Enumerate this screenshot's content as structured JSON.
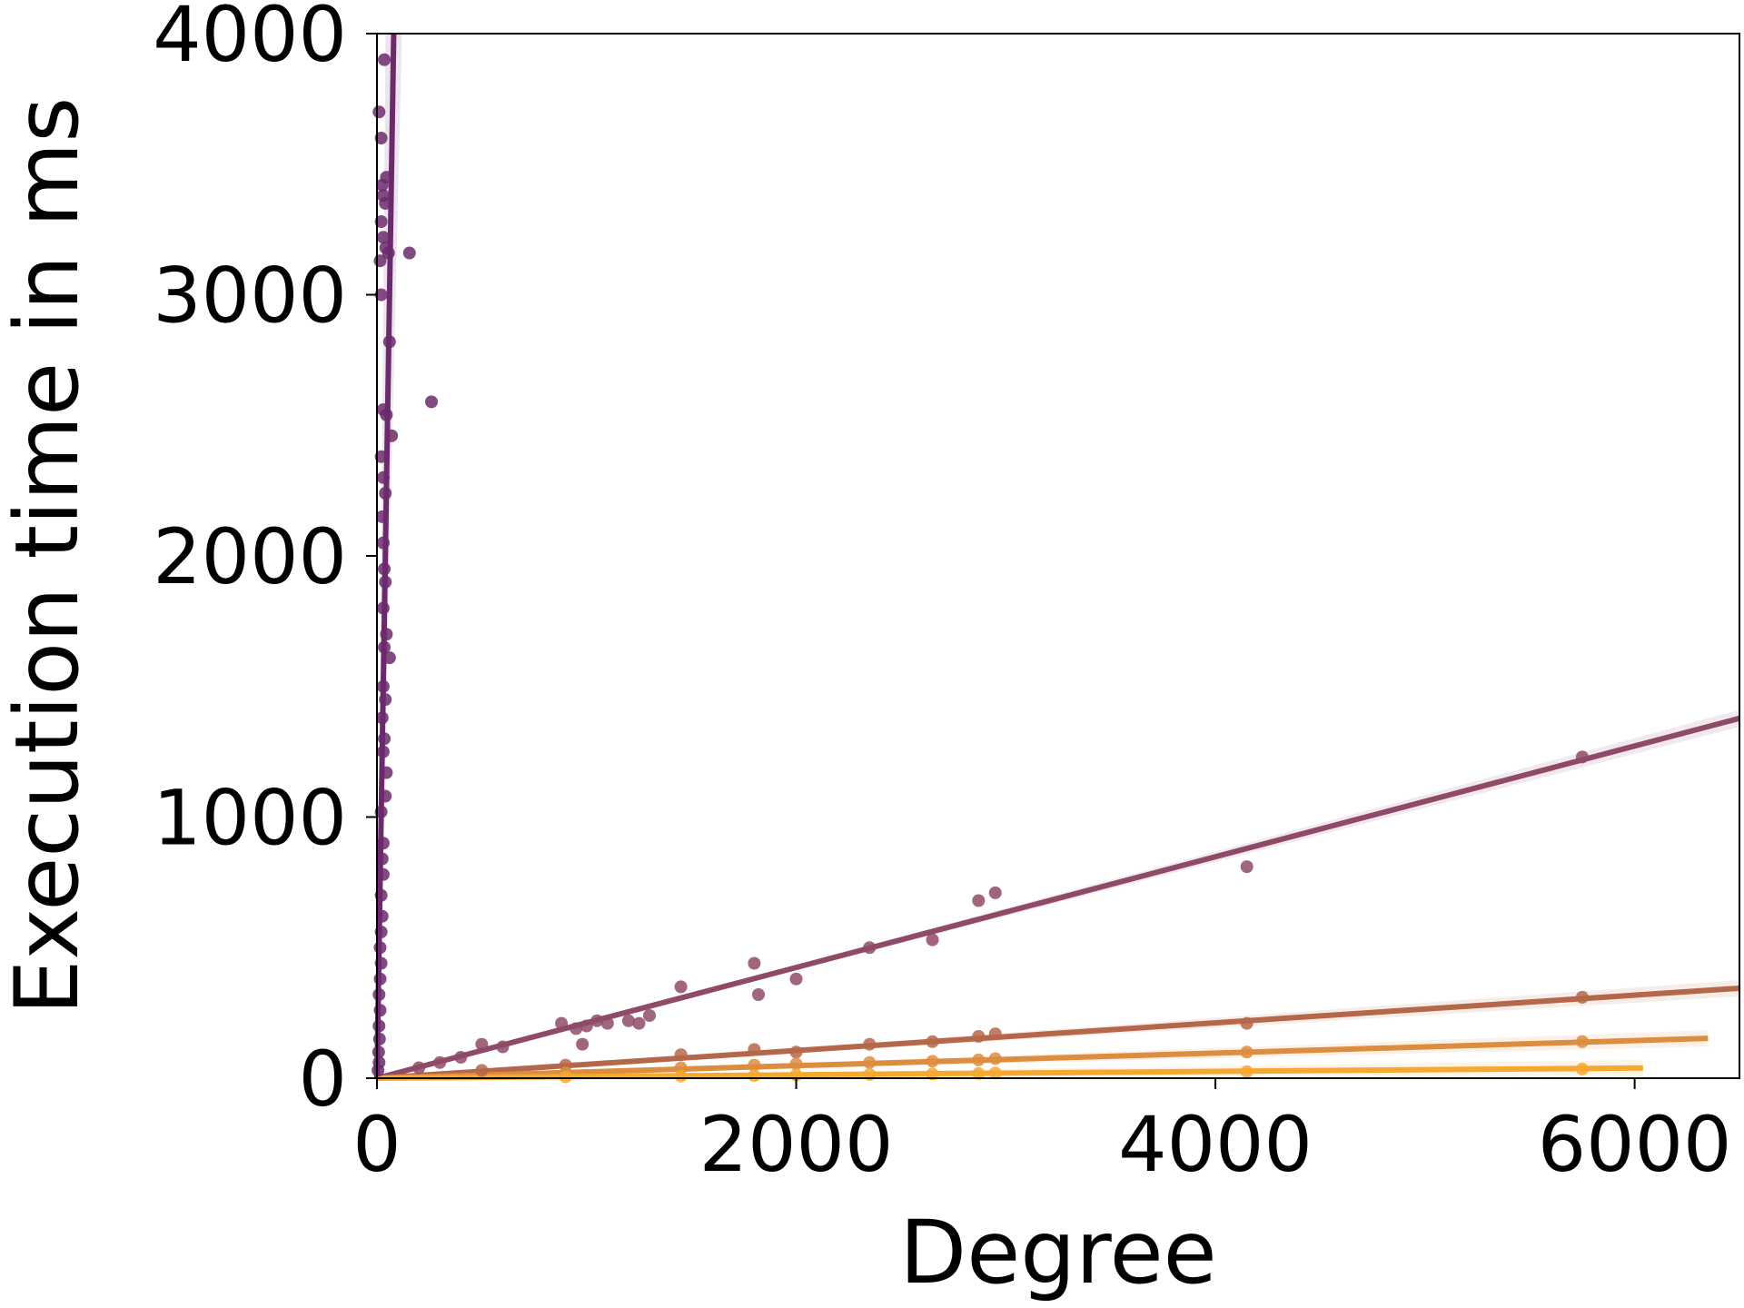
{
  "chart_data": {
    "type": "scatter",
    "xlabel": "Degree",
    "ylabel": "Execution time in ms",
    "xlim": [
      0,
      6500
    ],
    "ylim": [
      0,
      4000
    ],
    "x_ticks": [
      0,
      2000,
      4000,
      6000
    ],
    "y_ticks": [
      0,
      1000,
      2000,
      3000,
      4000
    ],
    "grid": false,
    "legend": "none",
    "series": [
      {
        "color": "#6b2a6b",
        "fit": {
          "slope": 50.0,
          "intercept": 0,
          "x_end": 85
        },
        "points": [
          [
            10,
            3700
          ],
          [
            20,
            3600
          ],
          [
            35,
            3900
          ],
          [
            25,
            3420
          ],
          [
            45,
            3450
          ],
          [
            30,
            3380
          ],
          [
            40,
            3350
          ],
          [
            20,
            3280
          ],
          [
            30,
            3220
          ],
          [
            42,
            3180
          ],
          [
            15,
            3130
          ],
          [
            55,
            3160
          ],
          [
            155,
            3160
          ],
          [
            20,
            3000
          ],
          [
            60,
            2820
          ],
          [
            260,
            2590
          ],
          [
            30,
            2560
          ],
          [
            45,
            2540
          ],
          [
            70,
            2460
          ],
          [
            20,
            2380
          ],
          [
            30,
            2300
          ],
          [
            40,
            2240
          ],
          [
            25,
            2150
          ],
          [
            30,
            2050
          ],
          [
            35,
            1950
          ],
          [
            40,
            1900
          ],
          [
            30,
            1800
          ],
          [
            45,
            1700
          ],
          [
            35,
            1650
          ],
          [
            60,
            1610
          ],
          [
            30,
            1500
          ],
          [
            40,
            1450
          ],
          [
            25,
            1380
          ],
          [
            35,
            1300
          ],
          [
            30,
            1250
          ],
          [
            45,
            1170
          ],
          [
            40,
            1080
          ],
          [
            20,
            1020
          ],
          [
            30,
            900
          ],
          [
            25,
            840
          ],
          [
            30,
            780
          ],
          [
            20,
            700
          ],
          [
            25,
            620
          ],
          [
            20,
            560
          ],
          [
            15,
            500
          ],
          [
            20,
            440
          ],
          [
            15,
            380
          ],
          [
            10,
            320
          ],
          [
            15,
            260
          ],
          [
            10,
            200
          ],
          [
            12,
            150
          ],
          [
            8,
            100
          ],
          [
            10,
            60
          ],
          [
            5,
            30
          ]
        ]
      },
      {
        "color": "#8f4a68",
        "fit": {
          "slope": 0.212,
          "intercept": 0,
          "x_end": 6500
        },
        "points": [
          [
            200,
            40
          ],
          [
            300,
            60
          ],
          [
            400,
            80
          ],
          [
            500,
            130
          ],
          [
            600,
            120
          ],
          [
            880,
            210
          ],
          [
            950,
            190
          ],
          [
            980,
            130
          ],
          [
            1000,
            200
          ],
          [
            1050,
            220
          ],
          [
            1100,
            210
          ],
          [
            1200,
            220
          ],
          [
            1250,
            210
          ],
          [
            1300,
            240
          ],
          [
            1450,
            350
          ],
          [
            1800,
            440
          ],
          [
            1820,
            320
          ],
          [
            2000,
            380
          ],
          [
            2350,
            500
          ],
          [
            2650,
            530
          ],
          [
            2870,
            680
          ],
          [
            2950,
            710
          ],
          [
            4150,
            810
          ],
          [
            5750,
            1230
          ]
        ]
      },
      {
        "color": "#b5674a",
        "fit": {
          "slope": 0.053,
          "intercept": 0,
          "x_end": 6500
        },
        "points": [
          [
            500,
            30
          ],
          [
            900,
            50
          ],
          [
            1450,
            90
          ],
          [
            1800,
            110
          ],
          [
            2000,
            100
          ],
          [
            2350,
            130
          ],
          [
            2650,
            140
          ],
          [
            2870,
            160
          ],
          [
            2950,
            170
          ],
          [
            4150,
            210
          ],
          [
            5750,
            310
          ]
        ]
      },
      {
        "color": "#dd8d3e",
        "fit": {
          "slope": 0.024,
          "intercept": 0,
          "x_end": 6350
        },
        "points": [
          [
            900,
            20
          ],
          [
            1450,
            40
          ],
          [
            1800,
            50
          ],
          [
            2000,
            55
          ],
          [
            2350,
            60
          ],
          [
            2650,
            65
          ],
          [
            2870,
            70
          ],
          [
            2950,
            75
          ],
          [
            4150,
            100
          ],
          [
            5750,
            140
          ]
        ]
      },
      {
        "color": "#f6a830",
        "fit": {
          "slope": 0.0065,
          "intercept": 0,
          "x_end": 6040
        },
        "points": [
          [
            900,
            5
          ],
          [
            1450,
            8
          ],
          [
            1800,
            10
          ],
          [
            2000,
            12
          ],
          [
            2350,
            14
          ],
          [
            2650,
            16
          ],
          [
            2870,
            18
          ],
          [
            2950,
            20
          ],
          [
            4150,
            25
          ],
          [
            5750,
            35
          ]
        ]
      }
    ]
  }
}
